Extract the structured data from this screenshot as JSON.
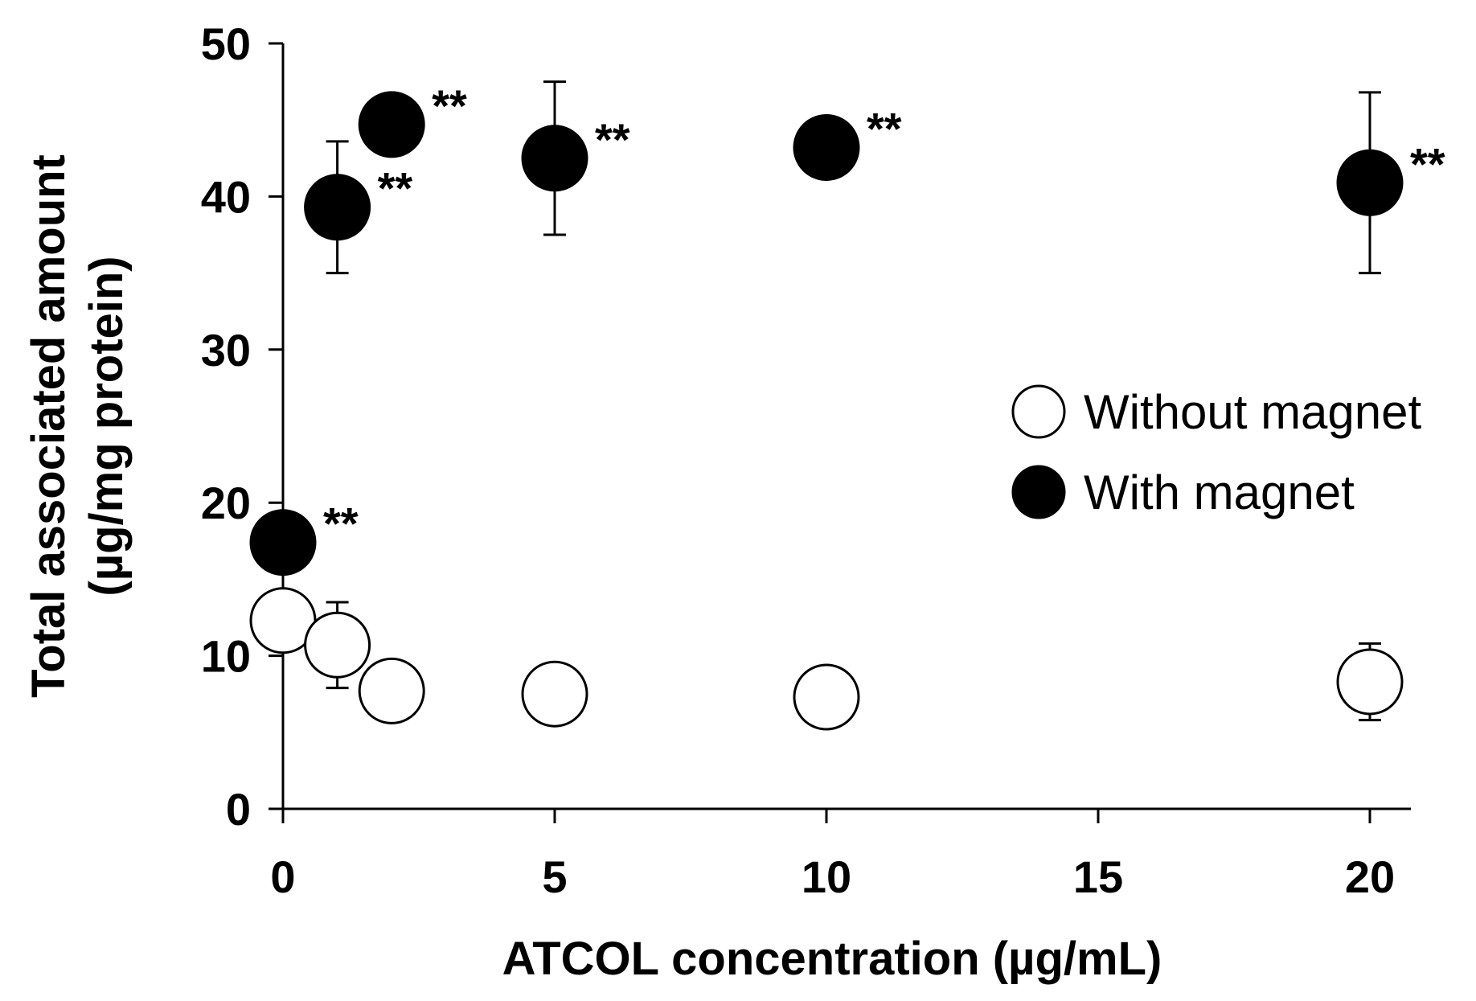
{
  "chart_data": {
    "type": "scatter",
    "title": "",
    "xlabel": "ATCOL concentration (µg/mL)",
    "ylabel_line1": "Total associated amount",
    "ylabel_line2": "(µg/mg protein)",
    "xlim": [
      0,
      21
    ],
    "ylim": [
      0,
      50
    ],
    "xticks": [
      0,
      5,
      10,
      15,
      20
    ],
    "yticks": [
      0,
      10,
      20,
      30,
      40,
      50
    ],
    "grid": false,
    "legend_position": "right",
    "colors": {
      "without": "#ffffff",
      "with": "#000000",
      "stroke": "#000000"
    },
    "series": [
      {
        "name": "Without magnet",
        "fill": "open",
        "points": [
          {
            "x": 0,
            "y": 12.3,
            "err": 0.0
          },
          {
            "x": 1,
            "y": 10.7,
            "err": 2.8
          },
          {
            "x": 2,
            "y": 7.7,
            "err": 0.0
          },
          {
            "x": 5,
            "y": 7.5,
            "err": 1.8
          },
          {
            "x": 10,
            "y": 7.3,
            "err": 0.0
          },
          {
            "x": 20,
            "y": 8.3,
            "err": 2.5
          }
        ]
      },
      {
        "name": "With magnet",
        "fill": "filled",
        "points": [
          {
            "x": 0,
            "y": 17.4,
            "err": 1.8,
            "annotation": "**"
          },
          {
            "x": 1,
            "y": 39.3,
            "err": 4.3,
            "annotation": "**"
          },
          {
            "x": 2,
            "y": 44.7,
            "err": 1.9,
            "annotation": "**"
          },
          {
            "x": 5,
            "y": 42.5,
            "err": 5.0,
            "annotation": "**"
          },
          {
            "x": 10,
            "y": 43.2,
            "err": 0.0,
            "annotation": "**"
          },
          {
            "x": 20,
            "y": 40.9,
            "err": 5.9,
            "annotation": "**"
          }
        ]
      }
    ]
  }
}
